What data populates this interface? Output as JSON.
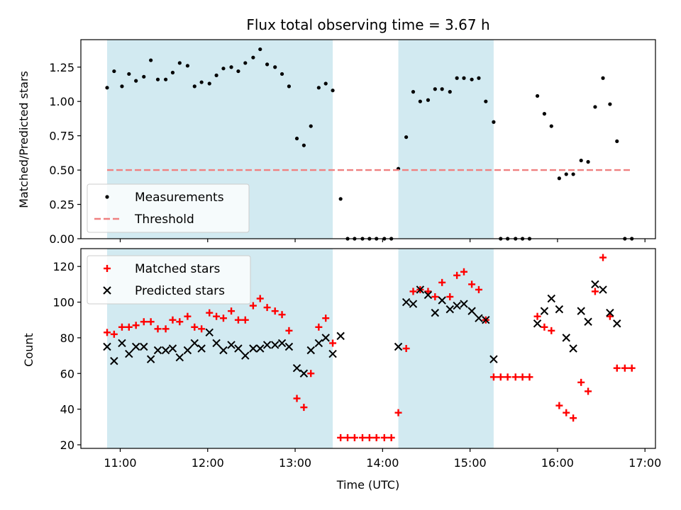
{
  "chart_data": {
    "type": "scatter",
    "title": "Flux total observing time = 3.67 h",
    "xlabel": "Time (UTC)",
    "x_ticks": [
      "11:00",
      "12:00",
      "13:00",
      "14:00",
      "15:00",
      "16:00",
      "17:00"
    ],
    "x_range_hours": [
      10.55,
      17.12
    ],
    "shaded_spans_hours": [
      [
        10.85,
        13.43
      ],
      [
        14.18,
        15.27
      ]
    ],
    "span_color": "#add8e6",
    "panels": [
      {
        "ylabel": "Matched/Predicted stars",
        "ylim": [
          0,
          1.45
        ],
        "y_ticks": [
          "0.00",
          "0.25",
          "0.50",
          "0.75",
          "1.00",
          "1.25"
        ],
        "legend_position": "lower-left",
        "series": [
          {
            "name": "Measurements",
            "marker": "dot",
            "color": "#000000",
            "points": [
              [
                10.85,
                1.1
              ],
              [
                10.93,
                1.22
              ],
              [
                11.02,
                1.11
              ],
              [
                11.1,
                1.2
              ],
              [
                11.18,
                1.15
              ],
              [
                11.27,
                1.18
              ],
              [
                11.35,
                1.3
              ],
              [
                11.43,
                1.16
              ],
              [
                11.52,
                1.16
              ],
              [
                11.6,
                1.21
              ],
              [
                11.68,
                1.28
              ],
              [
                11.77,
                1.26
              ],
              [
                11.85,
                1.11
              ],
              [
                11.93,
                1.14
              ],
              [
                12.02,
                1.13
              ],
              [
                12.1,
                1.19
              ],
              [
                12.18,
                1.24
              ],
              [
                12.27,
                1.25
              ],
              [
                12.35,
                1.22
              ],
              [
                12.43,
                1.28
              ],
              [
                12.52,
                1.32
              ],
              [
                12.6,
                1.38
              ],
              [
                12.68,
                1.27
              ],
              [
                12.77,
                1.25
              ],
              [
                12.85,
                1.2
              ],
              [
                12.93,
                1.11
              ],
              [
                13.02,
                0.73
              ],
              [
                13.1,
                0.68
              ],
              [
                13.18,
                0.82
              ],
              [
                13.27,
                1.1
              ],
              [
                13.35,
                1.13
              ],
              [
                13.43,
                1.08
              ],
              [
                13.52,
                0.29
              ],
              [
                13.6,
                0.0
              ],
              [
                13.68,
                0.0
              ],
              [
                13.77,
                0.0
              ],
              [
                13.85,
                0.0
              ],
              [
                13.93,
                0.0
              ],
              [
                14.02,
                0.0
              ],
              [
                14.1,
                0.0
              ],
              [
                14.18,
                0.51
              ],
              [
                14.27,
                0.74
              ],
              [
                14.35,
                1.07
              ],
              [
                14.43,
                1.0
              ],
              [
                14.52,
                1.01
              ],
              [
                14.6,
                1.09
              ],
              [
                14.68,
                1.09
              ],
              [
                14.77,
                1.07
              ],
              [
                14.85,
                1.17
              ],
              [
                14.93,
                1.17
              ],
              [
                15.02,
                1.16
              ],
              [
                15.1,
                1.17
              ],
              [
                15.18,
                1.0
              ],
              [
                15.27,
                0.85
              ],
              [
                15.35,
                0.0
              ],
              [
                15.43,
                0.0
              ],
              [
                15.52,
                0.0
              ],
              [
                15.6,
                0.0
              ],
              [
                15.68,
                0.0
              ],
              [
                15.77,
                1.04
              ],
              [
                15.85,
                0.91
              ],
              [
                15.93,
                0.82
              ],
              [
                16.02,
                0.44
              ],
              [
                16.1,
                0.47
              ],
              [
                16.18,
                0.47
              ],
              [
                16.27,
                0.57
              ],
              [
                16.35,
                0.56
              ],
              [
                16.43,
                0.96
              ],
              [
                16.52,
                1.17
              ],
              [
                16.6,
                0.98
              ],
              [
                16.68,
                0.71
              ],
              [
                16.77,
                0.0
              ],
              [
                16.85,
                0.0
              ]
            ]
          },
          {
            "name": "Threshold",
            "marker": "dashed-line",
            "color": "#f08080",
            "points": [
              [
                10.85,
                0.5
              ],
              [
                16.85,
                0.5
              ]
            ]
          }
        ]
      },
      {
        "ylabel": "Count",
        "ylim": [
          18,
          130
        ],
        "y_ticks": [
          "20",
          "40",
          "60",
          "80",
          "100",
          "120"
        ],
        "legend_position": "upper-left",
        "series": [
          {
            "name": "Matched stars",
            "marker": "plus",
            "color": "#ff0000",
            "points": [
              [
                10.85,
                83
              ],
              [
                10.93,
                82
              ],
              [
                11.02,
                86
              ],
              [
                11.1,
                86
              ],
              [
                11.18,
                87
              ],
              [
                11.27,
                89
              ],
              [
                11.35,
                89
              ],
              [
                11.43,
                85
              ],
              [
                11.52,
                85
              ],
              [
                11.6,
                90
              ],
              [
                11.68,
                89
              ],
              [
                11.77,
                92
              ],
              [
                11.85,
                86
              ],
              [
                11.93,
                85
              ],
              [
                12.02,
                94
              ],
              [
                12.1,
                92
              ],
              [
                12.18,
                91
              ],
              [
                12.27,
                95
              ],
              [
                12.35,
                90
              ],
              [
                12.43,
                90
              ],
              [
                12.52,
                98
              ],
              [
                12.6,
                102
              ],
              [
                12.68,
                97
              ],
              [
                12.77,
                95
              ],
              [
                12.85,
                93
              ],
              [
                12.93,
                84
              ],
              [
                13.02,
                46
              ],
              [
                13.1,
                41
              ],
              [
                13.18,
                60
              ],
              [
                13.27,
                86
              ],
              [
                13.35,
                91
              ],
              [
                13.43,
                77
              ],
              [
                13.52,
                24
              ],
              [
                13.6,
                24
              ],
              [
                13.68,
                24
              ],
              [
                13.77,
                24
              ],
              [
                13.85,
                24
              ],
              [
                13.93,
                24
              ],
              [
                14.02,
                24
              ],
              [
                14.1,
                24
              ],
              [
                14.18,
                38
              ],
              [
                14.27,
                74
              ],
              [
                14.35,
                106
              ],
              [
                14.43,
                107
              ],
              [
                14.52,
                106
              ],
              [
                14.6,
                103
              ],
              [
                14.68,
                111
              ],
              [
                14.77,
                103
              ],
              [
                14.85,
                115
              ],
              [
                14.93,
                117
              ],
              [
                15.02,
                110
              ],
              [
                15.1,
                107
              ],
              [
                15.18,
                90
              ],
              [
                15.27,
                58
              ],
              [
                15.35,
                58
              ],
              [
                15.43,
                58
              ],
              [
                15.52,
                58
              ],
              [
                15.6,
                58
              ],
              [
                15.68,
                58
              ],
              [
                15.77,
                92
              ],
              [
                15.85,
                86
              ],
              [
                15.93,
                84
              ],
              [
                16.02,
                42
              ],
              [
                16.1,
                38
              ],
              [
                16.18,
                35
              ],
              [
                16.27,
                55
              ],
              [
                16.35,
                50
              ],
              [
                16.43,
                106
              ],
              [
                16.52,
                125
              ],
              [
                16.6,
                92
              ],
              [
                16.68,
                63
              ],
              [
                16.77,
                63
              ],
              [
                16.85,
                63
              ]
            ]
          },
          {
            "name": "Predicted stars",
            "marker": "x",
            "color": "#000000",
            "points": [
              [
                10.85,
                75
              ],
              [
                10.93,
                67
              ],
              [
                11.02,
                77
              ],
              [
                11.1,
                71
              ],
              [
                11.18,
                75
              ],
              [
                11.27,
                75
              ],
              [
                11.35,
                68
              ],
              [
                11.43,
                73
              ],
              [
                11.52,
                73
              ],
              [
                11.6,
                74
              ],
              [
                11.68,
                69
              ],
              [
                11.77,
                73
              ],
              [
                11.85,
                77
              ],
              [
                11.93,
                74
              ],
              [
                12.02,
                83
              ],
              [
                12.1,
                77
              ],
              [
                12.18,
                73
              ],
              [
                12.27,
                76
              ],
              [
                12.35,
                74
              ],
              [
                12.43,
                70
              ],
              [
                12.52,
                74
              ],
              [
                12.6,
                74
              ],
              [
                12.68,
                76
              ],
              [
                12.77,
                76
              ],
              [
                12.85,
                77
              ],
              [
                12.93,
                75
              ],
              [
                13.02,
                63
              ],
              [
                13.1,
                60
              ],
              [
                13.18,
                73
              ],
              [
                13.27,
                77
              ],
              [
                13.35,
                80
              ],
              [
                13.43,
                71
              ],
              [
                13.52,
                81
              ],
              [
                14.18,
                75
              ],
              [
                14.27,
                100
              ],
              [
                14.35,
                99
              ],
              [
                14.43,
                107
              ],
              [
                14.52,
                104
              ],
              [
                14.6,
                94
              ],
              [
                14.68,
                101
              ],
              [
                14.77,
                96
              ],
              [
                14.85,
                98
              ],
              [
                14.93,
                99
              ],
              [
                15.02,
                95
              ],
              [
                15.1,
                91
              ],
              [
                15.18,
                90
              ],
              [
                15.27,
                68
              ],
              [
                15.77,
                88
              ],
              [
                15.85,
                95
              ],
              [
                15.93,
                102
              ],
              [
                16.02,
                96
              ],
              [
                16.1,
                80
              ],
              [
                16.18,
                74
              ],
              [
                16.27,
                95
              ],
              [
                16.35,
                89
              ],
              [
                16.43,
                110
              ],
              [
                16.52,
                107
              ],
              [
                16.6,
                94
              ],
              [
                16.68,
                88
              ]
            ]
          }
        ]
      }
    ]
  }
}
